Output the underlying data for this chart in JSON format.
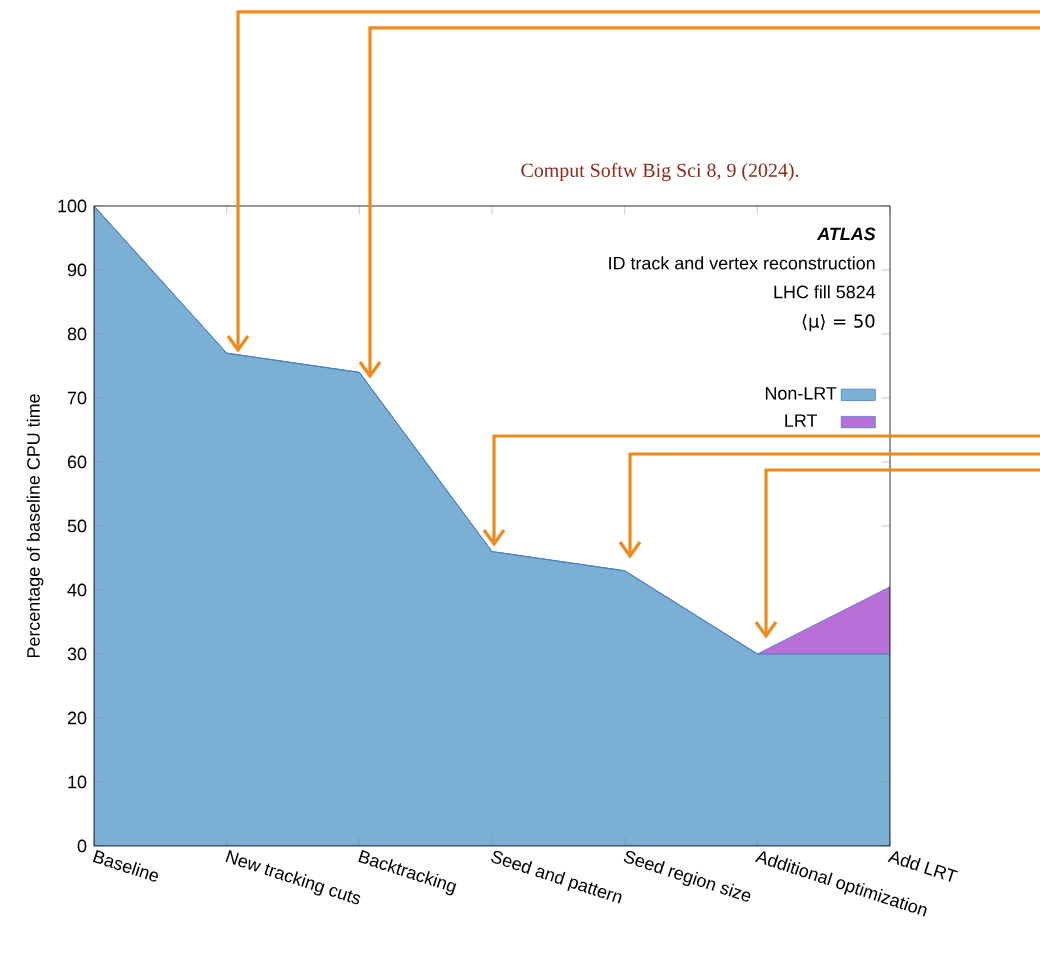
{
  "chart_data": {
    "type": "area",
    "stacked": true,
    "ylabel": "Percentage of baseline CPU time",
    "categories": [
      "Baseline",
      "New tracking cuts",
      "Backtracking",
      "Seed and pattern",
      "Seed region size",
      "Additional optimization",
      "Add LRT"
    ],
    "series": [
      {
        "name": "Non-LRT",
        "color": "#7bafd4",
        "values": [
          100,
          77,
          74,
          46,
          43,
          30,
          30
        ]
      },
      {
        "name": "LRT",
        "color": "#b86fd8",
        "values": [
          0,
          0,
          0,
          0,
          0,
          0,
          10.5
        ]
      }
    ],
    "ylim": [
      0,
      100
    ],
    "yticks": [
      0,
      10,
      20,
      30,
      40,
      50,
      60,
      70,
      80,
      90,
      100
    ],
    "legend": "top right",
    "annotations": [
      "Comput Softw Big Sci 8, 9 (2024).",
      "ATLAS",
      "ID track and vertex reconstruction",
      "LHC fill 5824",
      "⟨μ⟩ = 50"
    ]
  }
}
